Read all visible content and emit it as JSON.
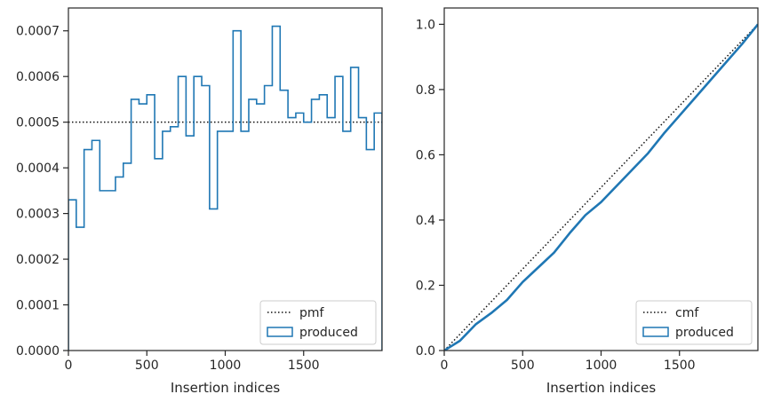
{
  "chart_data": [
    {
      "type": "line",
      "panel": "left",
      "xlabel": "Insertion indices",
      "ylabel": "",
      "xlim": [
        0,
        2000
      ],
      "ylim": [
        0,
        0.00075
      ],
      "x_ticks": [
        0,
        500,
        1000,
        1500
      ],
      "x_tick_labels": [
        "0",
        "500",
        "1000",
        "1500"
      ],
      "y_ticks": [
        0,
        0.0001,
        0.0002,
        0.0003,
        0.0004,
        0.0005,
        0.0006,
        0.0007
      ],
      "y_tick_labels": [
        "0.0000",
        "0.0001",
        "0.0002",
        "0.0003",
        "0.0004",
        "0.0005",
        "0.0006",
        "0.0007"
      ],
      "legend_placement": "lower-right",
      "grid": false,
      "series": [
        {
          "name": "pmf",
          "style": "dotted",
          "color": "#111111",
          "x": [
            0,
            2000
          ],
          "values": [
            0.0005,
            0.0005
          ]
        },
        {
          "name": "produced",
          "style": "step-histogram",
          "color": "#1f77b4",
          "bin_width": 50,
          "bin_edges_start": 0,
          "values": [
            0.00033,
            0.00027,
            0.00044,
            0.00046,
            0.00035,
            0.00035,
            0.00038,
            0.00041,
            0.00055,
            0.00054,
            0.00056,
            0.00042,
            0.00048,
            0.00049,
            0.0006,
            0.00047,
            0.0006,
            0.00058,
            0.00031,
            0.00048,
            0.00048,
            0.0007,
            0.00048,
            0.00055,
            0.00054,
            0.00058,
            0.00071,
            0.00057,
            0.00051,
            0.00052,
            0.0005,
            0.00055,
            0.00056,
            0.00051,
            0.0006,
            0.00048,
            0.00062,
            0.00051,
            0.00044,
            0.00052
          ]
        }
      ]
    },
    {
      "type": "line",
      "panel": "right",
      "xlabel": "Insertion indices",
      "ylabel": "",
      "xlim": [
        0,
        2000
      ],
      "ylim": [
        0,
        1.05
      ],
      "x_ticks": [
        0,
        500,
        1000,
        1500
      ],
      "x_tick_labels": [
        "0",
        "500",
        "1000",
        "1500"
      ],
      "y_ticks": [
        0,
        0.2,
        0.4,
        0.6,
        0.8,
        1.0
      ],
      "y_tick_labels": [
        "0.0",
        "0.2",
        "0.4",
        "0.6",
        "0.8",
        "1.0"
      ],
      "legend_placement": "lower-right",
      "grid": false,
      "series": [
        {
          "name": "cmf",
          "style": "dotted",
          "color": "#111111",
          "x": [
            0,
            2000
          ],
          "values": [
            0,
            1.0
          ]
        },
        {
          "name": "produced",
          "style": "thick-line",
          "color": "#1f77b4",
          "x": [
            0,
            100,
            200,
            300,
            400,
            500,
            600,
            700,
            800,
            900,
            1000,
            1100,
            1200,
            1300,
            1400,
            1500,
            1600,
            1700,
            1800,
            1900,
            2000
          ],
          "values": [
            0.0,
            0.03,
            0.08,
            0.115,
            0.155,
            0.21,
            0.255,
            0.3,
            0.36,
            0.415,
            0.455,
            0.505,
            0.555,
            0.605,
            0.665,
            0.72,
            0.775,
            0.83,
            0.885,
            0.94,
            1.0
          ]
        }
      ]
    }
  ]
}
